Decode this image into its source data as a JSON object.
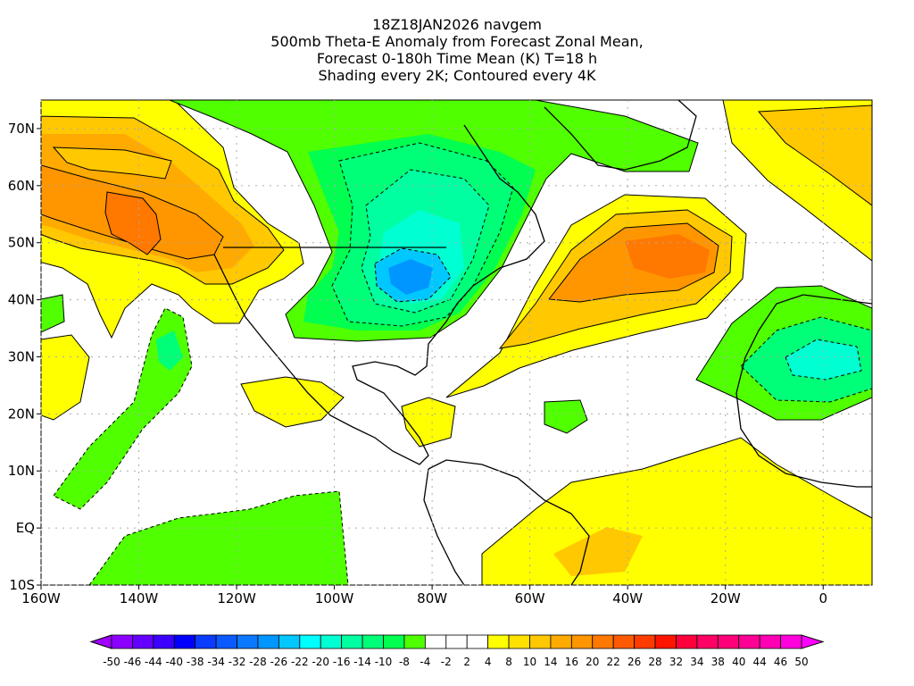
{
  "title": {
    "line1": "18Z18JAN2026 navgem",
    "line2": "500mb Theta-E Anomaly from Forecast Zonal Mean,",
    "line3": "Forecast 0-180h Time Mean (K) T=18 h",
    "line4": "Shading every 2K; Contoured every 4K"
  },
  "axes": {
    "lon_labels": [
      "160W",
      "140W",
      "120W",
      "100W",
      "80W",
      "60W",
      "40W",
      "20W",
      "0"
    ],
    "lon_values": [
      -160,
      -140,
      -120,
      -100,
      -80,
      -60,
      -40,
      -20,
      0
    ],
    "lat_labels": [
      "70N",
      "60N",
      "50N",
      "40N",
      "30N",
      "20N",
      "10N",
      "EQ",
      "10S"
    ],
    "lat_values": [
      70,
      60,
      50,
      40,
      30,
      20,
      10,
      0,
      -10
    ],
    "lon_range": [
      -160,
      10
    ],
    "lat_range": [
      -10,
      75
    ]
  },
  "colorbar": {
    "labels": [
      "-50",
      "-46",
      "-44",
      "-40",
      "-38",
      "-34",
      "-32",
      "-28",
      "-26",
      "-22",
      "-20",
      "-16",
      "-14",
      "-10",
      "-8",
      "-4",
      "-2",
      "2",
      "4",
      "8",
      "10",
      "14",
      "16",
      "20",
      "22",
      "26",
      "28",
      "32",
      "34",
      "38",
      "40",
      "44",
      "46",
      "50"
    ],
    "colors": [
      "#8c00ff",
      "#6400ff",
      "#3c00ff",
      "#0000ff",
      "#0a3cff",
      "#0a5aff",
      "#0a78ff",
      "#0096ff",
      "#00c8ff",
      "#00ffff",
      "#00ffd2",
      "#00ffa0",
      "#00ff78",
      "#00ff50",
      "#50ff00",
      "#ffffff",
      "#ffffff",
      "#ffffff",
      "#ffff00",
      "#ffe100",
      "#ffc800",
      "#ffaa00",
      "#ff9600",
      "#ff7800",
      "#ff5a00",
      "#ff3c00",
      "#ff1400",
      "#ff003c",
      "#ff0064",
      "#ff0078",
      "#ff0096",
      "#ff00b4",
      "#ff00dc"
    ],
    "low_color": "#a000ff",
    "high_color": "#ff00ff"
  }
}
